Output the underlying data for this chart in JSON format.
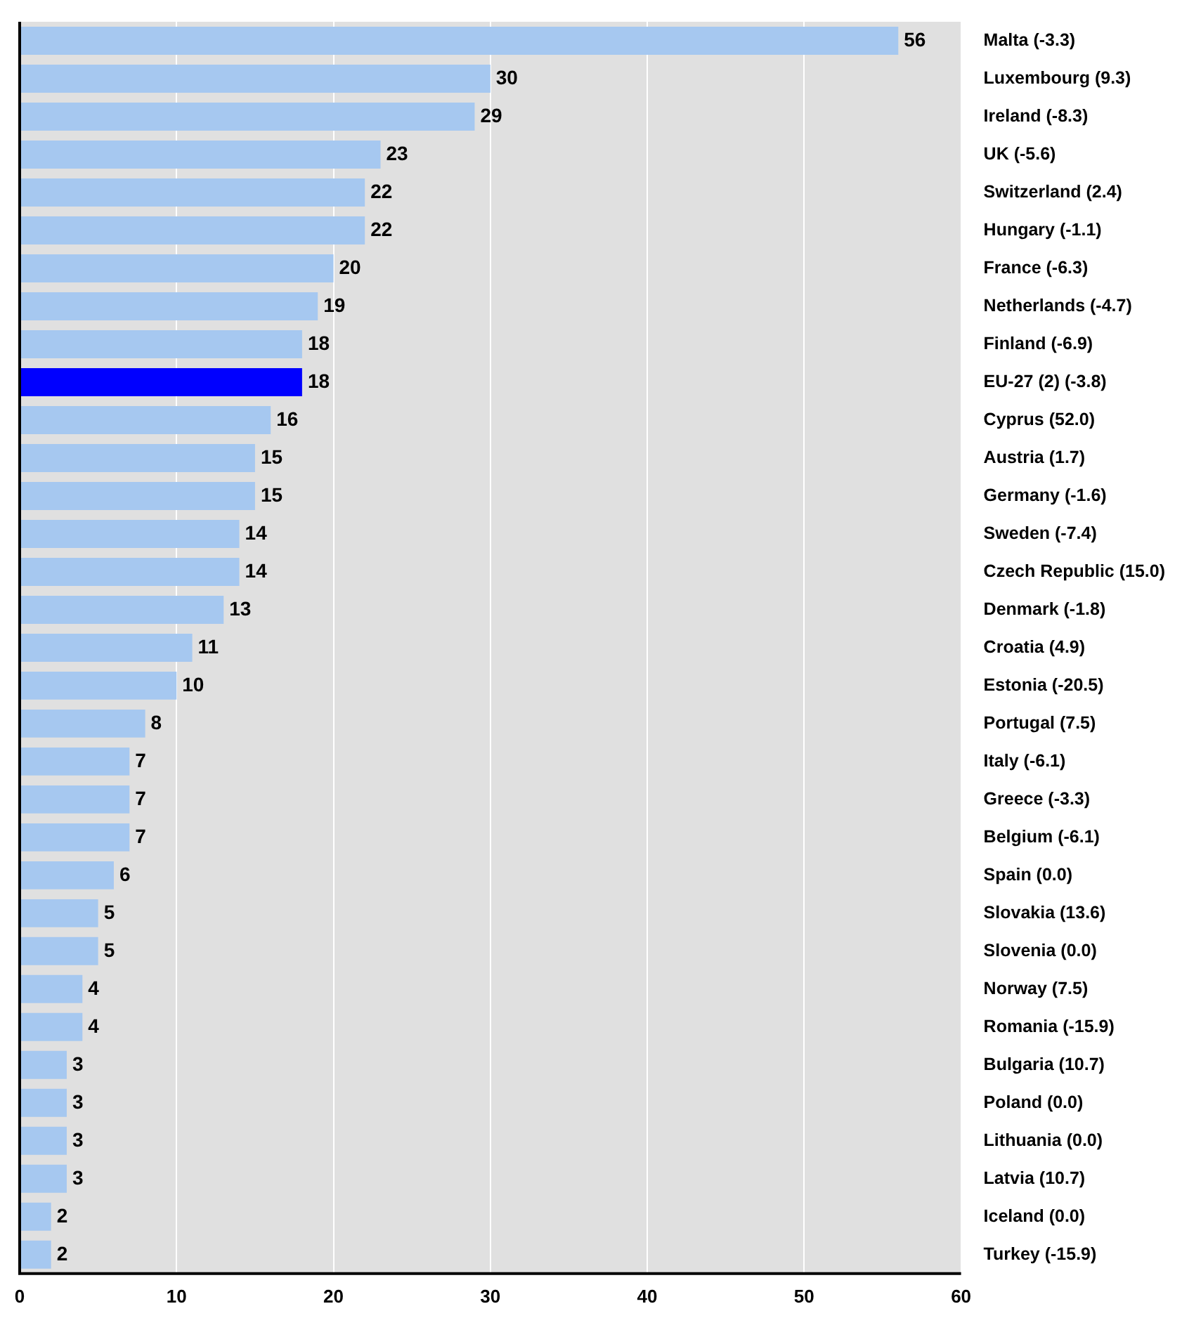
{
  "chart_data": {
    "type": "bar",
    "orientation": "horizontal",
    "categories": [
      "Malta (-3.3)",
      "Luxembourg (9.3)",
      "Ireland (-8.3)",
      "UK (-5.6)",
      "Switzerland (2.4)",
      "Hungary (-1.1)",
      "France (-6.3)",
      "Netherlands (-4.7)",
      "Finland (-6.9)",
      "EU-27 (2) (-3.8)",
      "Cyprus (52.0)",
      "Austria (1.7)",
      "Germany (-1.6)",
      "Sweden (-7.4)",
      "Czech Republic (15.0)",
      "Denmark (-1.8)",
      "Croatia (4.9)",
      "Estonia (-20.5)",
      "Portugal (7.5)",
      "Italy (-6.1)",
      "Greece (-3.3)",
      "Belgium (-6.1)",
      "Spain (0.0)",
      "Slovakia (13.6)",
      "Slovenia (0.0)",
      "Norway (7.5)",
      "Romania (-15.9)",
      "Bulgaria (10.7)",
      "Poland (0.0)",
      "Lithuania (0.0)",
      "Latvia (10.7)",
      "Iceland (0.0)",
      "Turkey (-15.9)"
    ],
    "values": [
      56,
      30,
      29,
      23,
      22,
      22,
      20,
      19,
      18,
      18,
      16,
      15,
      15,
      14,
      14,
      13,
      11,
      10,
      8,
      7,
      7,
      7,
      6,
      5,
      5,
      4,
      4,
      3,
      3,
      3,
      3,
      2,
      2
    ],
    "colors": [
      "#a6c8f0",
      "#a6c8f0",
      "#a6c8f0",
      "#a6c8f0",
      "#a6c8f0",
      "#a6c8f0",
      "#a6c8f0",
      "#a6c8f0",
      "#a6c8f0",
      "#0000ff",
      "#a6c8f0",
      "#a6c8f0",
      "#a6c8f0",
      "#a6c8f0",
      "#a6c8f0",
      "#a6c8f0",
      "#a6c8f0",
      "#a6c8f0",
      "#a6c8f0",
      "#a6c8f0",
      "#a6c8f0",
      "#a6c8f0",
      "#a6c8f0",
      "#a6c8f0",
      "#a6c8f0",
      "#a6c8f0",
      "#a6c8f0",
      "#a6c8f0",
      "#a6c8f0",
      "#a6c8f0",
      "#a6c8f0",
      "#a6c8f0",
      "#a6c8f0"
    ],
    "xlim": [
      0,
      60
    ],
    "xticks": [
      0,
      10,
      20,
      30,
      40,
      50,
      60
    ],
    "grid": "x",
    "data_labels": true
  }
}
